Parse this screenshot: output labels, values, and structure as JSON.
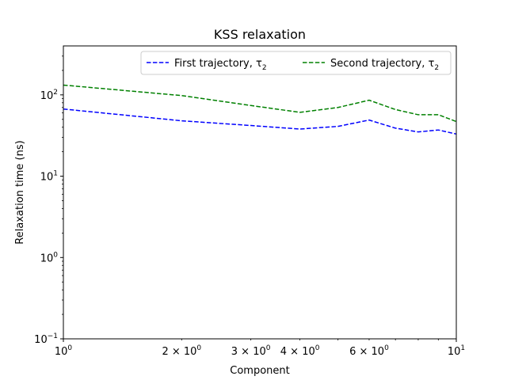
{
  "chart_data": {
    "type": "line",
    "title": "KSS relaxation",
    "xlabel": "Component",
    "ylabel": "Relaxation time (ns)",
    "xscale": "log",
    "yscale": "log",
    "xlim": [
      1,
      10
    ],
    "ylim": [
      0.1,
      400
    ],
    "x_major_ticks": [
      {
        "value": 1,
        "mantissa": "",
        "base": "10",
        "exp": "0"
      },
      {
        "value": 10,
        "mantissa": "",
        "base": "10",
        "exp": "1"
      }
    ],
    "x_minor_ticks": [
      2,
      3,
      4,
      5,
      6,
      7,
      8,
      9
    ],
    "x_minor_labels": [
      {
        "value": 2,
        "mantissa": "2 × ",
        "base": "10",
        "exp": "0"
      },
      {
        "value": 3,
        "mantissa": "3 × ",
        "base": "10",
        "exp": "0"
      },
      {
        "value": 4,
        "mantissa": "4 × ",
        "base": "10",
        "exp": "0"
      },
      {
        "value": 6,
        "mantissa": "6 × ",
        "base": "10",
        "exp": "0"
      }
    ],
    "y_major_ticks": [
      {
        "value": 0.1,
        "base": "10",
        "exp": "−1"
      },
      {
        "value": 1,
        "base": "10",
        "exp": "0"
      },
      {
        "value": 10,
        "base": "10",
        "exp": "1"
      },
      {
        "value": 100,
        "base": "10",
        "exp": "2"
      }
    ],
    "grid": false,
    "legend_position": "top-right",
    "legend_columns": 2,
    "x": [
      1,
      2,
      3,
      4,
      5,
      6,
      7,
      8,
      9,
      10
    ],
    "series": [
      {
        "name": "First trajectory, τ",
        "name_subscript": "2",
        "color": "#0000ff",
        "style": "dashed",
        "values": [
          67,
          48,
          42,
          38,
          41,
          49,
          39,
          35,
          37,
          33
        ]
      },
      {
        "name": "Second trajectory, τ",
        "name_subscript": "2",
        "color": "#008000",
        "style": "dashed",
        "values": [
          132,
          98,
          74,
          61,
          70,
          86,
          66,
          57,
          57,
          47
        ]
      }
    ]
  }
}
